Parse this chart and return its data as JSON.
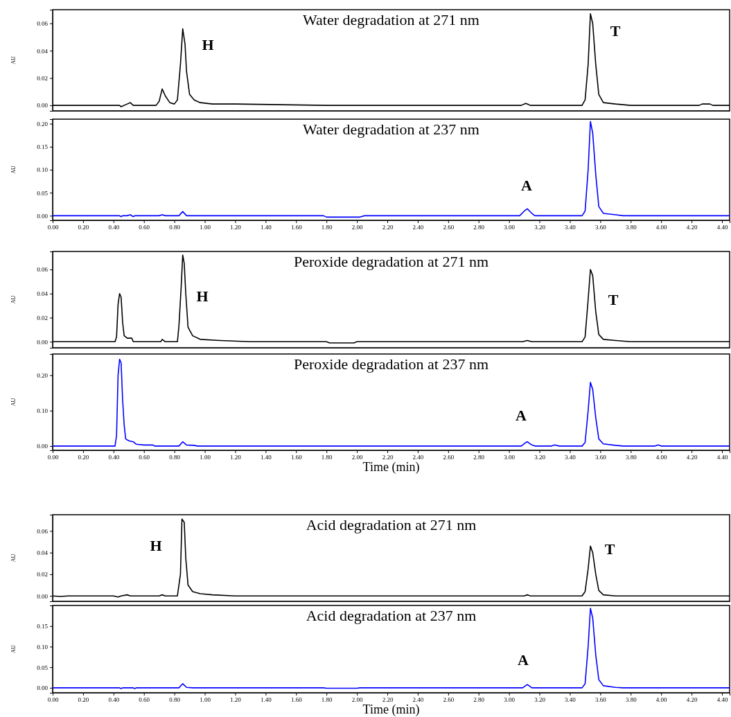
{
  "chart_data": [
    {
      "type": "line",
      "title": "Water degradation at 271 nm",
      "ylabel": "AU",
      "tick_labels": "y",
      "xlim": [
        0,
        4.45
      ],
      "ylim": [
        -0.004,
        0.07
      ],
      "yticks": [
        {
          "value": 0,
          "label": "0.00"
        },
        {
          "value": 0.02,
          "label": "0.02"
        },
        {
          "value": 0.04,
          "label": "0.04"
        },
        {
          "value": 0.06,
          "label": "0.06"
        }
      ],
      "annotations": [
        "H",
        "T"
      ],
      "series": [
        {
          "color": "#000000",
          "x": [
            0,
            0.44,
            0.45,
            0.49,
            0.51,
            0.53,
            0.68,
            0.7,
            0.72,
            0.74,
            0.77,
            0.8,
            0.82,
            0.84,
            0.855,
            0.87,
            0.88,
            0.9,
            0.93,
            0.97,
            1.05,
            1.2,
            1.8,
            3.08,
            3.11,
            3.14,
            3.48,
            3.5,
            3.52,
            3.535,
            3.55,
            3.57,
            3.59,
            3.62,
            3.7,
            3.8,
            4.25,
            4.27,
            4.32,
            4.34,
            4.45
          ],
          "values": [
            0,
            0,
            -0.001,
            0.001,
            0.002,
            0,
            0,
            0.003,
            0.012,
            0.007,
            0.002,
            0.001,
            0.004,
            0.03,
            0.056,
            0.045,
            0.025,
            0.008,
            0.004,
            0.002,
            0.001,
            0.001,
            0,
            0,
            0.0015,
            0,
            0,
            0.004,
            0.03,
            0.067,
            0.06,
            0.03,
            0.008,
            0.002,
            0.001,
            0,
            0,
            0.001,
            0.001,
            0,
            0
          ]
        }
      ]
    },
    {
      "type": "line",
      "title": "Water degradation at 237 nm",
      "ylabel": "AU",
      "xlim": [
        0,
        4.45
      ],
      "ylim": [
        -0.01,
        0.21
      ],
      "xticks": [
        {
          "value": 0,
          "label": "0.00"
        },
        {
          "value": 0.2,
          "label": "0.20"
        },
        {
          "value": 0.4,
          "label": "0.40"
        },
        {
          "value": 0.6,
          "label": "0.60"
        },
        {
          "value": 0.8,
          "label": "0.80"
        },
        {
          "value": 1,
          "label": "1.00"
        },
        {
          "value": 1.2,
          "label": "1.20"
        },
        {
          "value": 1.4,
          "label": "1.40"
        },
        {
          "value": 1.6,
          "label": "1.60"
        },
        {
          "value": 1.8,
          "label": "1.80"
        },
        {
          "value": 2,
          "label": "2.00"
        },
        {
          "value": 2.2,
          "label": "2.20"
        },
        {
          "value": 2.4,
          "label": "2.40"
        },
        {
          "value": 2.6,
          "label": "2.60"
        },
        {
          "value": 2.8,
          "label": "2.80"
        },
        {
          "value": 3,
          "label": "3.00"
        },
        {
          "value": 3.2,
          "label": "3.20"
        },
        {
          "value": 3.4,
          "label": "3.40"
        },
        {
          "value": 3.6,
          "label": "3.60"
        },
        {
          "value": 3.8,
          "label": "3.80"
        },
        {
          "value": 4,
          "label": "4.00"
        },
        {
          "value": 4.2,
          "label": "4.20"
        },
        {
          "value": 4.4,
          "label": "4.40"
        }
      ],
      "yticks": [
        {
          "value": 0,
          "label": "0.00"
        },
        {
          "value": 0.05,
          "label": "0.05"
        },
        {
          "value": 0.1,
          "label": "0.10"
        },
        {
          "value": 0.15,
          "label": "0.15"
        },
        {
          "value": 0.2,
          "label": "0.20"
        }
      ],
      "annotations": [
        "A"
      ],
      "series": [
        {
          "color": "#0000ff",
          "x": [
            0,
            0.44,
            0.45,
            0.46,
            0.49,
            0.51,
            0.53,
            0.54,
            0.7,
            0.72,
            0.74,
            0.83,
            0.855,
            0.88,
            1.78,
            1.8,
            2.02,
            2.05,
            3.07,
            3.1,
            3.12,
            3.15,
            3.17,
            3.48,
            3.5,
            3.52,
            3.535,
            3.55,
            3.57,
            3.59,
            3.62,
            3.7,
            3.75,
            4.45
          ],
          "values": [
            0,
            0,
            -0.002,
            0,
            0,
            0.002,
            -0.002,
            0,
            0,
            0.002,
            0,
            0,
            0.009,
            0,
            0,
            -0.003,
            -0.003,
            0,
            0,
            0.01,
            0.015,
            0.005,
            0,
            0,
            0.01,
            0.1,
            0.205,
            0.18,
            0.09,
            0.02,
            0.005,
            0.002,
            0,
            0
          ]
        }
      ]
    },
    {
      "type": "line",
      "title": "Peroxide degradation at 271 nm",
      "ylabel": "AU",
      "tick_labels": "y",
      "xlim": [
        0,
        4.45
      ],
      "ylim": [
        -0.005,
        0.075
      ],
      "yticks": [
        {
          "value": 0,
          "label": "0.00"
        },
        {
          "value": 0.02,
          "label": "0.02"
        },
        {
          "value": 0.04,
          "label": "0.04"
        },
        {
          "value": 0.06,
          "label": "0.06"
        }
      ],
      "annotations": [
        "H",
        "T"
      ],
      "series": [
        {
          "color": "#000000",
          "x": [
            0,
            0.41,
            0.42,
            0.43,
            0.44,
            0.45,
            0.46,
            0.47,
            0.49,
            0.52,
            0.53,
            0.71,
            0.72,
            0.74,
            0.82,
            0.83,
            0.845,
            0.855,
            0.865,
            0.875,
            0.89,
            0.92,
            0.97,
            1.1,
            1.3,
            1.8,
            1.82,
            1.98,
            2,
            3.09,
            3.12,
            3.15,
            3.48,
            3.5,
            3.52,
            3.535,
            3.55,
            3.57,
            3.59,
            3.62,
            3.7,
            3.8,
            4.45
          ],
          "values": [
            0,
            0,
            0.004,
            0.031,
            0.04,
            0.037,
            0.016,
            0.005,
            0.003,
            0.003,
            0,
            0,
            0.002,
            0,
            0,
            0.013,
            0.046,
            0.072,
            0.065,
            0.04,
            0.012,
            0.005,
            0.002,
            0.001,
            0,
            0,
            -0.001,
            -0.001,
            0,
            0,
            0.001,
            0,
            0,
            0.004,
            0.035,
            0.06,
            0.055,
            0.025,
            0.006,
            0.002,
            0.001,
            0,
            0
          ]
        }
      ]
    },
    {
      "type": "line",
      "title": "Peroxide degradation at 237 nm",
      "ylabel": "AU",
      "xlabel": "Time (min)",
      "xlim": [
        0,
        4.45
      ],
      "ylim": [
        -0.012,
        0.26
      ],
      "xticks": [
        {
          "value": 0,
          "label": "0.00"
        },
        {
          "value": 0.2,
          "label": "0.20"
        },
        {
          "value": 0.4,
          "label": "0.40"
        },
        {
          "value": 0.6,
          "label": "0.60"
        },
        {
          "value": 0.8,
          "label": "0.80"
        },
        {
          "value": 1,
          "label": "1.00"
        },
        {
          "value": 1.2,
          "label": "1.20"
        },
        {
          "value": 1.4,
          "label": "1.40"
        },
        {
          "value": 1.6,
          "label": "1.60"
        },
        {
          "value": 1.8,
          "label": "1.80"
        },
        {
          "value": 2,
          "label": "2.00"
        },
        {
          "value": 2.2,
          "label": "2.20"
        },
        {
          "value": 2.4,
          "label": "2.40"
        },
        {
          "value": 2.6,
          "label": "2.60"
        },
        {
          "value": 2.8,
          "label": "2.80"
        },
        {
          "value": 3,
          "label": "3.00"
        },
        {
          "value": 3.2,
          "label": "3.20"
        },
        {
          "value": 3.4,
          "label": "3.40"
        },
        {
          "value": 3.6,
          "label": "3.60"
        },
        {
          "value": 3.8,
          "label": "3.80"
        },
        {
          "value": 4,
          "label": "4.00"
        },
        {
          "value": 4.2,
          "label": "4.20"
        },
        {
          "value": 4.4,
          "label": "4.40"
        }
      ],
      "yticks": [
        {
          "value": 0,
          "label": "0.00"
        },
        {
          "value": 0.1,
          "label": "0.10"
        },
        {
          "value": 0.2,
          "label": "0.20"
        }
      ],
      "annotations": [
        "A"
      ],
      "series": [
        {
          "color": "#0000ff",
          "x": [
            0,
            0.41,
            0.42,
            0.43,
            0.44,
            0.45,
            0.46,
            0.47,
            0.48,
            0.5,
            0.53,
            0.55,
            0.6,
            0.66,
            0.67,
            0.83,
            0.855,
            0.88,
            0.93,
            0.95,
            3.08,
            3.11,
            3.12,
            3.15,
            3.17,
            3.28,
            3.3,
            3.33,
            3.48,
            3.5,
            3.52,
            3.535,
            3.55,
            3.57,
            3.59,
            3.62,
            3.7,
            3.75,
            3.96,
            3.98,
            4,
            4.45
          ],
          "values": [
            0,
            0,
            0.03,
            0.2,
            0.245,
            0.235,
            0.13,
            0.06,
            0.02,
            0.015,
            0.012,
            0.005,
            0.003,
            0.003,
            0,
            0,
            0.012,
            0.003,
            0.002,
            0,
            0,
            0.01,
            0.012,
            0.003,
            0,
            0,
            0.003,
            0,
            0,
            0.01,
            0.1,
            0.18,
            0.16,
            0.08,
            0.02,
            0.006,
            0.002,
            0,
            0,
            0.003,
            0,
            0
          ]
        }
      ]
    },
    {
      "type": "line",
      "title": "Acid degradation at 271 nm",
      "ylabel": "AU",
      "tick_labels": "y",
      "xlim": [
        0,
        4.45
      ],
      "ylim": [
        -0.005,
        0.075
      ],
      "yticks": [
        {
          "value": 0,
          "label": "0.00"
        },
        {
          "value": 0.02,
          "label": "0.02"
        },
        {
          "value": 0.04,
          "label": "0.04"
        },
        {
          "value": 0.06,
          "label": "0.06"
        }
      ],
      "annotations": [
        "H",
        "T"
      ],
      "series": [
        {
          "color": "#000000",
          "x": [
            0,
            0.05,
            0.1,
            0.4,
            0.43,
            0.45,
            0.49,
            0.51,
            0.7,
            0.72,
            0.74,
            0.82,
            0.84,
            0.85,
            0.865,
            0.875,
            0.89,
            0.92,
            0.97,
            1.05,
            1.2,
            3.1,
            3.12,
            3.14,
            3.48,
            3.5,
            3.52,
            3.535,
            3.55,
            3.57,
            3.59,
            3.62,
            3.7,
            4.45
          ],
          "values": [
            0,
            -0.0005,
            0,
            0,
            -0.001,
            0,
            0.001,
            0,
            0,
            0.001,
            0,
            0,
            0.02,
            0.071,
            0.068,
            0.035,
            0.01,
            0.004,
            0.002,
            0.001,
            0,
            0,
            0.001,
            0,
            0,
            0.004,
            0.025,
            0.046,
            0.04,
            0.02,
            0.005,
            0.001,
            0,
            0
          ]
        }
      ]
    },
    {
      "type": "line",
      "title": "Acid degradation at 237 nm",
      "ylabel": "AU",
      "xlabel": "Time (min)",
      "xlim": [
        0,
        4.45
      ],
      "ylim": [
        -0.012,
        0.2
      ],
      "xticks": [
        {
          "value": 0,
          "label": "0.00"
        },
        {
          "value": 0.2,
          "label": "0.20"
        },
        {
          "value": 0.4,
          "label": "0.40"
        },
        {
          "value": 0.6,
          "label": "0.60"
        },
        {
          "value": 0.8,
          "label": "0.80"
        },
        {
          "value": 1,
          "label": "1.00"
        },
        {
          "value": 1.2,
          "label": "1.20"
        },
        {
          "value": 1.4,
          "label": "1.40"
        },
        {
          "value": 1.6,
          "label": "1.60"
        },
        {
          "value": 1.8,
          "label": "1.80"
        },
        {
          "value": 2,
          "label": "2.00"
        },
        {
          "value": 2.2,
          "label": "2.20"
        },
        {
          "value": 2.4,
          "label": "2.40"
        },
        {
          "value": 2.6,
          "label": "2.60"
        },
        {
          "value": 2.8,
          "label": "2.80"
        },
        {
          "value": 3,
          "label": "3.00"
        },
        {
          "value": 3.2,
          "label": "3.20"
        },
        {
          "value": 3.4,
          "label": "3.40"
        },
        {
          "value": 3.6,
          "label": "3.60"
        },
        {
          "value": 3.8,
          "label": "3.80"
        },
        {
          "value": 4,
          "label": "4.00"
        },
        {
          "value": 4.2,
          "label": "4.20"
        },
        {
          "value": 4.4,
          "label": "4.40"
        }
      ],
      "yticks": [
        {
          "value": 0,
          "label": "0.00"
        },
        {
          "value": 0.05,
          "label": "0.05"
        },
        {
          "value": 0.1,
          "label": "0.10"
        },
        {
          "value": 0.15,
          "label": "0.15"
        }
      ],
      "annotations": [
        "A"
      ],
      "series": [
        {
          "color": "#0000ff",
          "x": [
            0,
            0.44,
            0.45,
            0.46,
            0.53,
            0.54,
            0.55,
            0.83,
            0.855,
            0.88,
            0.92,
            1.78,
            1.8,
            2,
            2.02,
            3.09,
            3.12,
            3.15,
            3.48,
            3.5,
            3.52,
            3.535,
            3.55,
            3.57,
            3.59,
            3.62,
            3.7,
            3.75,
            4.45
          ],
          "values": [
            0,
            0,
            -0.002,
            0,
            0,
            -0.002,
            0,
            0,
            0.01,
            0.001,
            0,
            0,
            -0.001,
            -0.001,
            0,
            0,
            0.008,
            0,
            0,
            0.01,
            0.1,
            0.193,
            0.17,
            0.08,
            0.02,
            0.005,
            0.001,
            0,
            0
          ]
        }
      ]
    }
  ]
}
